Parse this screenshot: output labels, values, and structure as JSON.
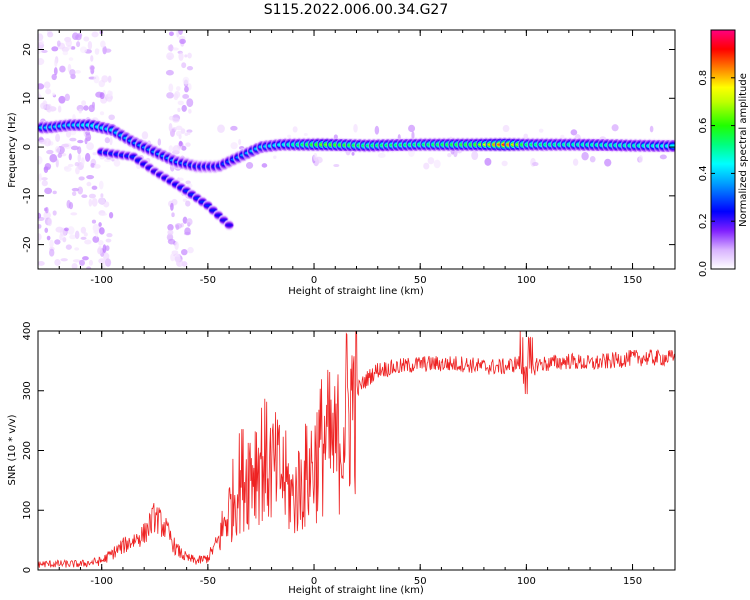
{
  "title": "S115.2022.006.00.34.G27",
  "colors": {
    "snr_line": "#ee2222",
    "colormap": [
      "#ffffff",
      "#f0d8ff",
      "#a040ff",
      "#5000f0",
      "#0000ff",
      "#00b0ff",
      "#00ffff",
      "#00ff60",
      "#40ff00",
      "#ffff00",
      "#ff8000",
      "#ff0000",
      "#ff0080"
    ]
  },
  "chart_data": [
    {
      "type": "heatmap",
      "xlabel": "Height of straight line (km)",
      "ylabel": "Frequency (Hz)",
      "xlim": [
        -130,
        170
      ],
      "ylim": [
        -25,
        24
      ],
      "xticks": [
        -100,
        -50,
        0,
        50,
        100,
        150
      ],
      "yticks": [
        -20,
        -10,
        0,
        10,
        20
      ],
      "colorbar": {
        "label": "Normalized spectral amplitude",
        "range": [
          0,
          1
        ],
        "ticks": [
          "0.0",
          "0.2",
          "0.4",
          "0.6",
          "0.8"
        ]
      },
      "ridge": [
        {
          "height": -125,
          "frequency": 4,
          "amplitude": 0.45
        },
        {
          "height": -115,
          "frequency": 4.5,
          "amplitude": 0.45
        },
        {
          "height": -105,
          "frequency": 4.5,
          "amplitude": 0.5
        },
        {
          "height": -95,
          "frequency": 3.5,
          "amplitude": 0.45
        },
        {
          "height": -85,
          "frequency": 1,
          "amplitude": 0.4
        },
        {
          "height": -75,
          "frequency": -1,
          "amplitude": 0.4
        },
        {
          "height": -65,
          "frequency": -3,
          "amplitude": 0.4
        },
        {
          "height": -55,
          "frequency": -4,
          "amplitude": 0.35
        },
        {
          "height": -45,
          "frequency": -4,
          "amplitude": 0.35
        },
        {
          "height": -35,
          "frequency": -2,
          "amplitude": 0.4
        },
        {
          "height": -25,
          "frequency": 0,
          "amplitude": 0.45
        },
        {
          "height": -15,
          "frequency": 0.5,
          "amplitude": 0.5
        },
        {
          "height": -5,
          "frequency": 0.5,
          "amplitude": 0.6
        },
        {
          "height": 5,
          "frequency": 0.5,
          "amplitude": 0.7
        },
        {
          "height": 25,
          "frequency": 0.3,
          "amplitude": 0.6
        },
        {
          "height": 50,
          "frequency": 0.5,
          "amplitude": 0.6
        },
        {
          "height": 75,
          "frequency": 0.5,
          "amplitude": 0.65
        },
        {
          "height": 90,
          "frequency": 0.5,
          "amplitude": 0.9
        },
        {
          "height": 100,
          "frequency": 0.5,
          "amplitude": 0.6
        },
        {
          "height": 125,
          "frequency": 0.5,
          "amplitude": 0.55
        },
        {
          "height": 150,
          "frequency": 0.3,
          "amplitude": 0.55
        },
        {
          "height": 170,
          "frequency": 0.2,
          "amplitude": 0.5
        }
      ],
      "secondary_branch": [
        {
          "height": -100,
          "frequency": -1,
          "amplitude": 0.35
        },
        {
          "height": -85,
          "frequency": -2,
          "amplitude": 0.35
        },
        {
          "height": -75,
          "frequency": -5,
          "amplitude": 0.3
        },
        {
          "height": -60,
          "frequency": -9,
          "amplitude": 0.35
        },
        {
          "height": -50,
          "frequency": -12,
          "amplitude": 0.35
        },
        {
          "height": -40,
          "frequency": -16,
          "amplitude": 0.3
        }
      ]
    },
    {
      "type": "line",
      "xlabel": "Height of straight line (km)",
      "ylabel": "SNR (10 * v/v)",
      "xlim": [
        -130,
        170
      ],
      "ylim": [
        0,
        400
      ],
      "xticks": [
        -100,
        -50,
        0,
        50,
        100,
        150
      ],
      "yticks": [
        0,
        100,
        200,
        300,
        400
      ],
      "series": [
        {
          "x": [
            -130,
            -110,
            -100,
            -90,
            -80,
            -75,
            -70,
            -65,
            -60,
            -55,
            -50,
            -45,
            -40,
            -35,
            -30,
            -25,
            -20,
            -15,
            -10,
            -5,
            0,
            5,
            10,
            15,
            20,
            25,
            30,
            40,
            50,
            60,
            70,
            80,
            90,
            95,
            100,
            102,
            105,
            110,
            120,
            130,
            140,
            150,
            160,
            170
          ],
          "y": [
            10,
            10,
            15,
            40,
            60,
            90,
            70,
            35,
            20,
            15,
            20,
            50,
            100,
            150,
            170,
            190,
            170,
            160,
            120,
            150,
            180,
            220,
            200,
            260,
            300,
            320,
            335,
            340,
            345,
            345,
            345,
            340,
            340,
            345,
            350,
            330,
            345,
            345,
            350,
            345,
            350,
            355,
            355,
            355
          ]
        }
      ]
    }
  ]
}
